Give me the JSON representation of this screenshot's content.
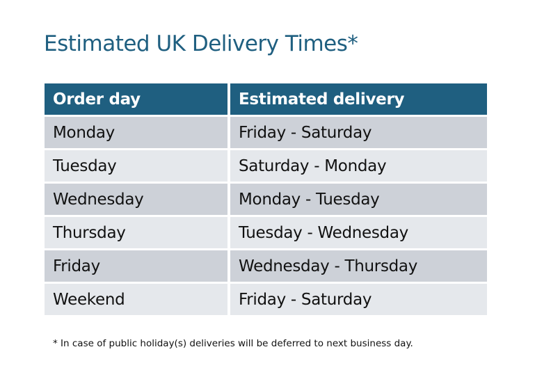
{
  "title": "Estimated UK Delivery Times*",
  "table": {
    "headers": [
      "Order day",
      "Estimated delivery"
    ],
    "rows": [
      [
        "Monday",
        "Friday - Saturday"
      ],
      [
        "Tuesday",
        "Saturday - Monday"
      ],
      [
        "Wednesday",
        "Monday - Tuesday"
      ],
      [
        "Thursday",
        "Tuesday - Wednesday"
      ],
      [
        "Friday",
        "Wednesday - Thursday"
      ],
      [
        "Weekend",
        "Friday - Saturday"
      ]
    ]
  },
  "footnote": "* In case of public holiday(s) deliveries will be deferred to next business day.",
  "colors": {
    "header": "#1f5f80",
    "row_dark": "#cdd1d8",
    "row_light": "#e5e8ec",
    "title": "#1f5f80"
  }
}
